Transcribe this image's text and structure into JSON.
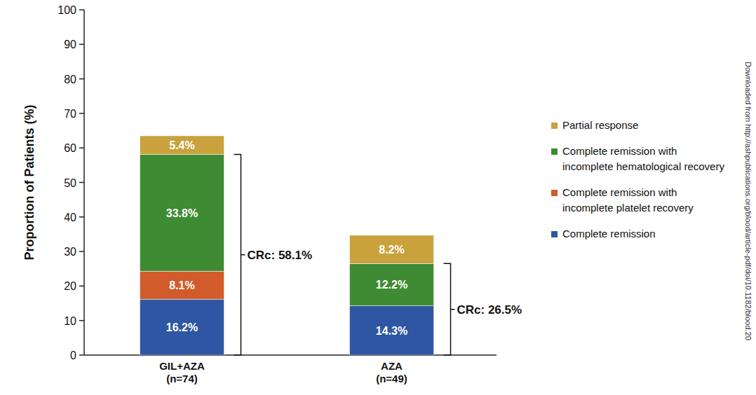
{
  "chart_data": {
    "type": "bar",
    "stacked": true,
    "data_labels": true,
    "legend": "right",
    "y_label": "Proportion of Patients (%)",
    "categories": [
      "GIL+AZA\n(n=74)",
      "AZA\n(n=49)"
    ],
    "ylim": [
      0,
      100
    ],
    "yticks": [
      0,
      10,
      20,
      30,
      40,
      50,
      60,
      70,
      80,
      90,
      100
    ],
    "series": [
      {
        "name": "Complete remission",
        "color": "#2f56a3",
        "values": [
          16.2,
          14.3
        ],
        "value_labels": [
          "16.2%",
          "14.3%"
        ]
      },
      {
        "name": "Complete remission with\nincomplete platelet recovery",
        "color": "#d25b2b",
        "values": [
          8.1,
          null
        ],
        "value_labels": [
          "8.1%",
          null
        ]
      },
      {
        "name": "Complete remission with\nincomplete hematological recovery",
        "color": "#3f8b33",
        "values": [
          33.8,
          12.2
        ],
        "value_labels": [
          "33.8%",
          "12.2%"
        ]
      },
      {
        "name": "Partial response",
        "color": "#c9a23e",
        "values": [
          5.4,
          8.2
        ],
        "value_labels": [
          "5.4%",
          "8.2%"
        ]
      }
    ],
    "annotations": [
      {
        "text": "CRc: 58.1%",
        "category": 0,
        "value": 58.1
      },
      {
        "text": "CRc: 26.5%",
        "category": 1,
        "value": 26.5
      }
    ],
    "side_note": "Downloaded from http://ashpublications.org/blood/article-pdf/doi/10.1182/blood.20"
  }
}
